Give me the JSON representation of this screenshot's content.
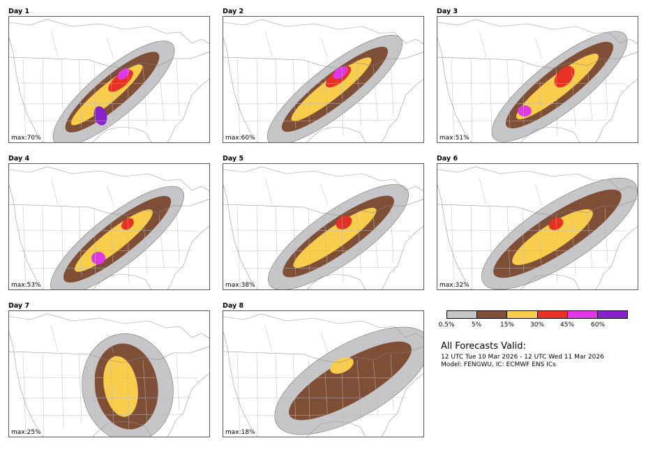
{
  "colors": {
    "p05": "#c6c6c8",
    "p5": "#7e4f36",
    "p15": "#f8cd4b",
    "p30": "#e53224",
    "p45": "#e038e6",
    "p60": "#8a22c9"
  },
  "panels": [
    {
      "title": "Day 1",
      "max": "max:70%",
      "levels": 6
    },
    {
      "title": "Day 2",
      "max": "max:60%",
      "levels": 5
    },
    {
      "title": "Day 3",
      "max": "max:51%",
      "levels": 5
    },
    {
      "title": "Day 4",
      "max": "max:53%",
      "levels": 5
    },
    {
      "title": "Day 5",
      "max": "max:38%",
      "levels": 4
    },
    {
      "title": "Day 6",
      "max": "max:32%",
      "levels": 4
    },
    {
      "title": "Day 7",
      "max": "max:25%",
      "levels": 3
    },
    {
      "title": "Day 8",
      "max": "max:18%",
      "levels": 3
    }
  ],
  "legend": {
    "ticks": [
      "0.5%",
      "5%",
      "15%",
      "30%",
      "45%",
      "60%"
    ]
  },
  "info": {
    "title": "All Forecasts Valid:",
    "valid": "12 UTC Tue 10 Mar 2026 - 12 UTC Wed 11 Mar 2026",
    "model": "Model: FENGWU, IC: ECMWF ENS ICs"
  }
}
